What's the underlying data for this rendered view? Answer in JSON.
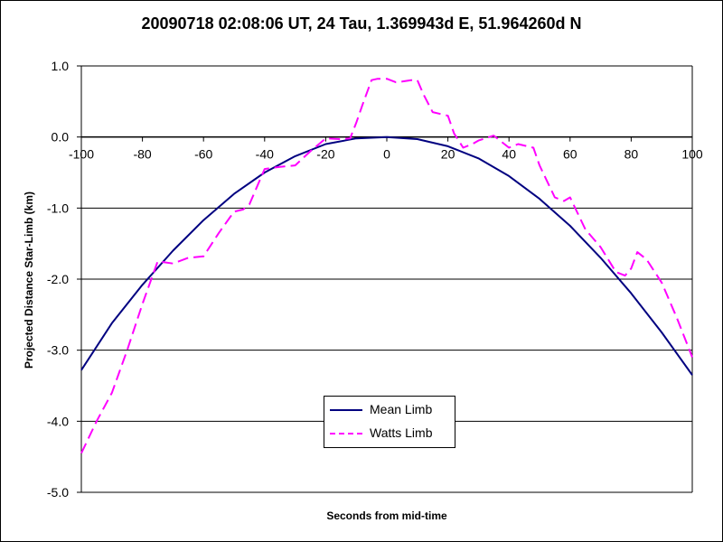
{
  "chart_data": {
    "type": "line",
    "title": "20090718 02:08:06 UT, 24 Tau, 1.369943d E, 51.964260d N",
    "xlabel": "Seconds from mid-time",
    "ylabel": "Projected Distance Star-Limb (km)",
    "xlim": [
      -100,
      100
    ],
    "ylim": [
      -5,
      1
    ],
    "xticks": [
      "-100",
      "-80",
      "-60",
      "-40",
      "-20",
      "0",
      "20",
      "40",
      "60",
      "80",
      "100"
    ],
    "yticks": [
      "1.0",
      "0.0",
      "-1.0",
      "-2.0",
      "-3.0",
      "-4.0",
      "-5.0"
    ],
    "grid": "horizontal",
    "legend_position": "bottom-center",
    "series": [
      {
        "name": "Mean Limb",
        "color": "#000080",
        "style": "solid",
        "x": [
          -100,
          -90,
          -80,
          -70,
          -60,
          -50,
          -40,
          -30,
          -20,
          -10,
          0,
          10,
          20,
          30,
          40,
          50,
          60,
          70,
          80,
          90,
          100
        ],
        "y": [
          -3.28,
          -2.62,
          -2.08,
          -1.6,
          -1.17,
          -0.8,
          -0.5,
          -0.27,
          -0.1,
          -0.02,
          0.0,
          -0.03,
          -0.13,
          -0.3,
          -0.55,
          -0.87,
          -1.25,
          -1.7,
          -2.2,
          -2.75,
          -3.35
        ]
      },
      {
        "name": "Watts Limb",
        "color": "#ff00ff",
        "style": "dashed",
        "x": [
          -100,
          -95,
          -90,
          -85,
          -80,
          -75,
          -70,
          -65,
          -60,
          -55,
          -50,
          -47,
          -45,
          -40,
          -35,
          -30,
          -25,
          -20,
          -15,
          -12,
          -10,
          -8,
          -5,
          -3,
          0,
          3,
          5,
          8,
          10,
          12,
          15,
          20,
          22,
          25,
          28,
          30,
          35,
          40,
          43,
          45,
          48,
          50,
          55,
          58,
          60,
          65,
          70,
          75,
          78,
          80,
          82,
          85,
          90,
          95,
          100
        ],
        "y": [
          -4.45,
          -4.0,
          -3.6,
          -3.0,
          -2.35,
          -1.75,
          -1.78,
          -1.7,
          -1.68,
          -1.35,
          -1.05,
          -1.02,
          -0.95,
          -0.45,
          -0.42,
          -0.4,
          -0.2,
          -0.02,
          -0.03,
          -0.02,
          0.2,
          0.45,
          0.8,
          0.82,
          0.82,
          0.77,
          0.78,
          0.8,
          0.8,
          0.6,
          0.35,
          0.3,
          0.05,
          -0.15,
          -0.1,
          -0.05,
          0.02,
          -0.15,
          -0.1,
          -0.12,
          -0.15,
          -0.4,
          -0.85,
          -0.9,
          -0.85,
          -1.3,
          -1.55,
          -1.9,
          -1.95,
          -1.85,
          -1.62,
          -1.72,
          -2.05,
          -2.55,
          -3.1
        ]
      }
    ]
  }
}
